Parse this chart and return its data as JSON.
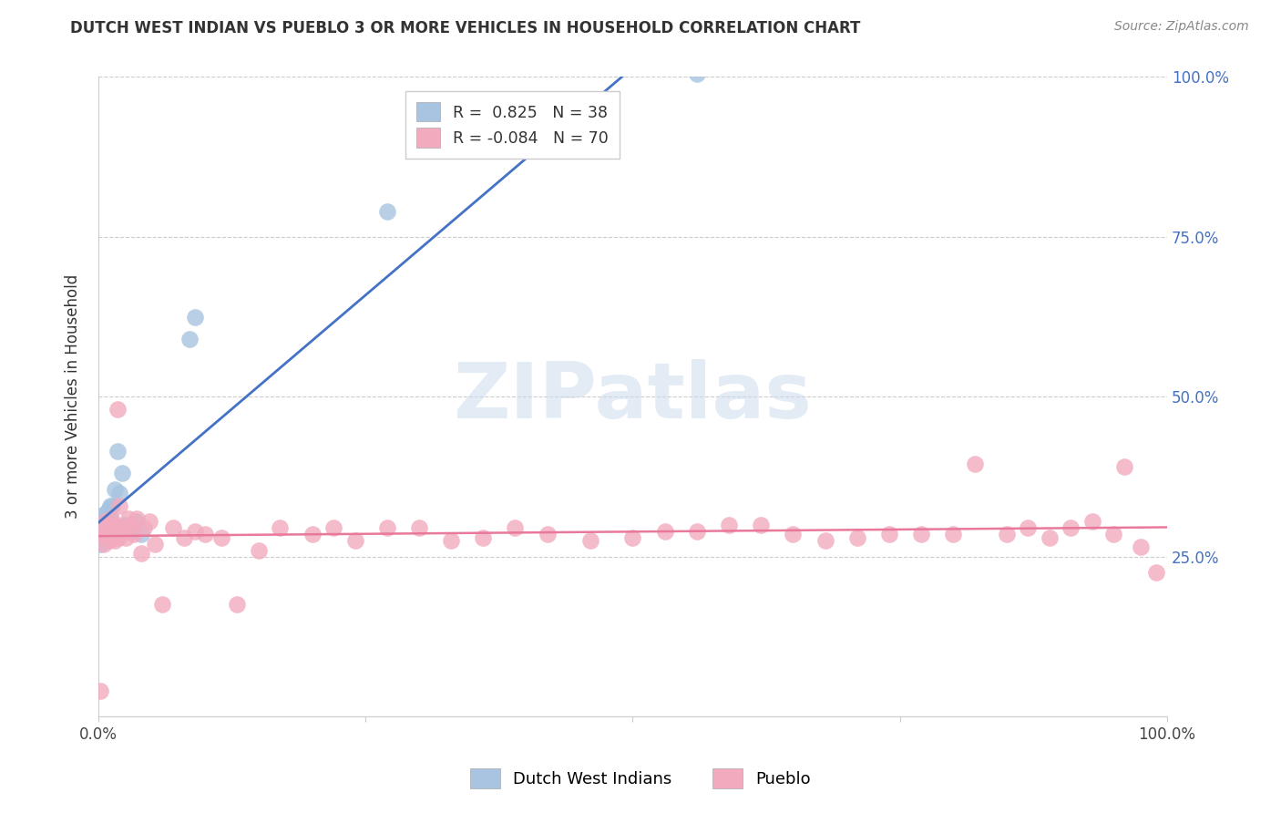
{
  "title": "DUTCH WEST INDIAN VS PUEBLO 3 OR MORE VEHICLES IN HOUSEHOLD CORRELATION CHART",
  "source": "Source: ZipAtlas.com",
  "ylabel": "3 or more Vehicles in Household",
  "xlim": [
    0.0,
    1.0
  ],
  "ylim": [
    0.0,
    1.0
  ],
  "xtick_positions": [
    0.0,
    0.25,
    0.5,
    0.75,
    1.0
  ],
  "xticklabels": [
    "0.0%",
    "",
    "",
    "",
    "100.0%"
  ],
  "ytick_positions": [
    0.0,
    0.25,
    0.5,
    0.75,
    1.0
  ],
  "yticklabels_right": [
    "",
    "25.0%",
    "50.0%",
    "75.0%",
    "100.0%"
  ],
  "watermark_text": "ZIPatlas",
  "blue_R": 0.825,
  "blue_N": 38,
  "pink_R": -0.084,
  "pink_N": 70,
  "blue_color": "#a8c4e0",
  "pink_color": "#f2aabe",
  "blue_line_color": "#4472c4",
  "pink_line_color": "#e8799a",
  "legend_blue_label": "Dutch West Indians",
  "legend_pink_label": "Pueblo",
  "blue_x": [
    0.001,
    0.002,
    0.002,
    0.003,
    0.003,
    0.003,
    0.004,
    0.004,
    0.004,
    0.005,
    0.005,
    0.005,
    0.006,
    0.006,
    0.007,
    0.007,
    0.008,
    0.008,
    0.009,
    0.009,
    0.01,
    0.011,
    0.011,
    0.012,
    0.013,
    0.015,
    0.016,
    0.018,
    0.02,
    0.022,
    0.025,
    0.03,
    0.035,
    0.04,
    0.085,
    0.09,
    0.27,
    0.56
  ],
  "blue_y": [
    0.285,
    0.27,
    0.295,
    0.28,
    0.295,
    0.31,
    0.285,
    0.3,
    0.315,
    0.28,
    0.295,
    0.31,
    0.285,
    0.31,
    0.29,
    0.31,
    0.295,
    0.32,
    0.285,
    0.305,
    0.325,
    0.31,
    0.33,
    0.295,
    0.33,
    0.355,
    0.29,
    0.415,
    0.35,
    0.38,
    0.3,
    0.29,
    0.305,
    0.285,
    0.59,
    0.625,
    0.79,
    1.005
  ],
  "pink_x": [
    0.002,
    0.004,
    0.005,
    0.006,
    0.007,
    0.008,
    0.009,
    0.01,
    0.011,
    0.012,
    0.012,
    0.013,
    0.014,
    0.015,
    0.016,
    0.017,
    0.018,
    0.019,
    0.02,
    0.022,
    0.024,
    0.026,
    0.028,
    0.03,
    0.033,
    0.036,
    0.04,
    0.043,
    0.048,
    0.053,
    0.06,
    0.07,
    0.08,
    0.09,
    0.1,
    0.115,
    0.13,
    0.15,
    0.17,
    0.2,
    0.22,
    0.24,
    0.27,
    0.3,
    0.33,
    0.36,
    0.39,
    0.42,
    0.46,
    0.5,
    0.53,
    0.56,
    0.59,
    0.62,
    0.65,
    0.68,
    0.71,
    0.74,
    0.77,
    0.8,
    0.82,
    0.85,
    0.87,
    0.89,
    0.91,
    0.93,
    0.95,
    0.96,
    0.975,
    0.99
  ],
  "pink_y": [
    0.04,
    0.285,
    0.27,
    0.305,
    0.295,
    0.285,
    0.3,
    0.275,
    0.29,
    0.31,
    0.28,
    0.29,
    0.295,
    0.275,
    0.3,
    0.29,
    0.48,
    0.28,
    0.33,
    0.295,
    0.295,
    0.28,
    0.31,
    0.3,
    0.285,
    0.31,
    0.255,
    0.295,
    0.305,
    0.27,
    0.175,
    0.295,
    0.28,
    0.29,
    0.285,
    0.28,
    0.175,
    0.26,
    0.295,
    0.285,
    0.295,
    0.275,
    0.295,
    0.295,
    0.275,
    0.28,
    0.295,
    0.285,
    0.275,
    0.28,
    0.29,
    0.29,
    0.3,
    0.3,
    0.285,
    0.275,
    0.28,
    0.285,
    0.285,
    0.285,
    0.395,
    0.285,
    0.295,
    0.28,
    0.295,
    0.305,
    0.285,
    0.39,
    0.265,
    0.225
  ]
}
